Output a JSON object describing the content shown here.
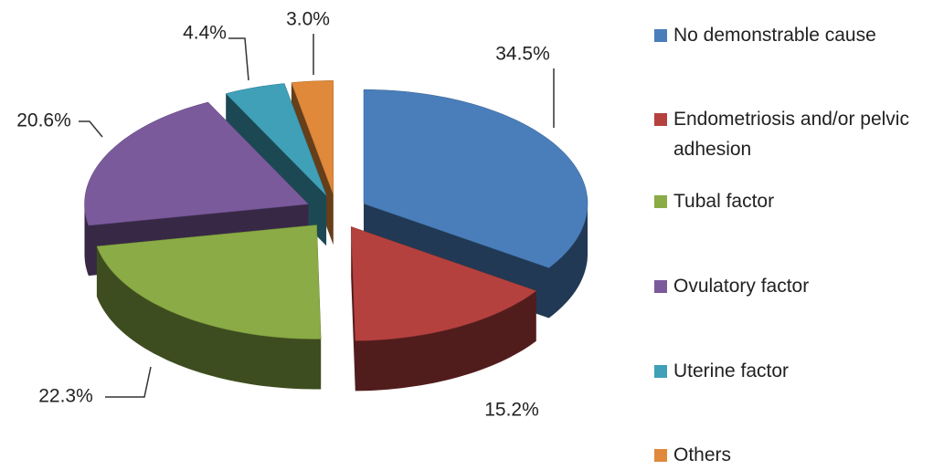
{
  "chart_data": {
    "type": "pie",
    "categories": [
      "No demonstrable cause",
      "Endometriosis and/or pelvic adhesion",
      "Tubal factor",
      "Ovulatory factor",
      "Uterine factor",
      "Others"
    ],
    "values": [
      34.5,
      15.2,
      22.3,
      20.6,
      4.4,
      3.0
    ],
    "value_labels": [
      "34.5%",
      "15.2%",
      "22.3%",
      "20.6%",
      "4.4%",
      "3.0%"
    ],
    "colors": [
      "#4a7ebb",
      "#b5413f",
      "#8aab45",
      "#7b5a9c",
      "#3fa0b8",
      "#e0893a"
    ],
    "legend": "right"
  }
}
